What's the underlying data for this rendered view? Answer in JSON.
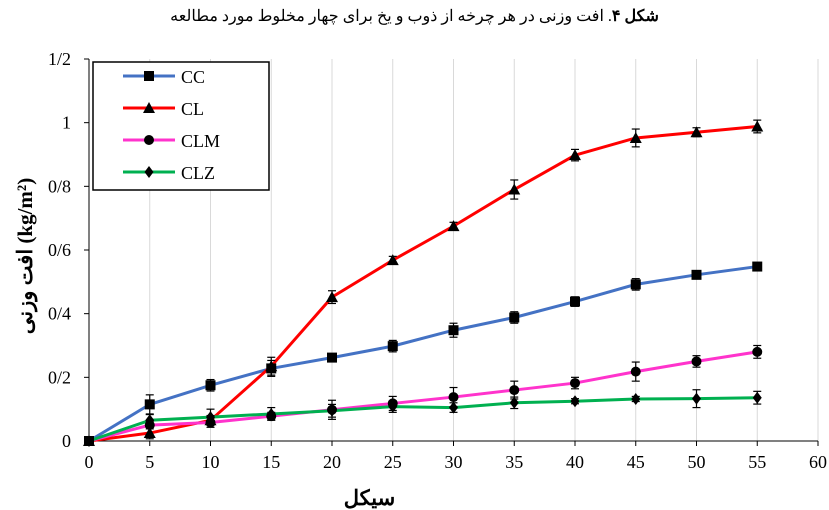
{
  "caption": {
    "label": "شکل ۴",
    "text": ". افت وزنی در هر چرخه از ذوب و یخ برای چهار مخلوط مورد مطالعه"
  },
  "chart_data": {
    "type": "line",
    "title": "",
    "xlabel": "سیکل",
    "ylabel": "افت وزنی (kg/m²)",
    "xlim": [
      0,
      60
    ],
    "ylim": [
      0,
      1.2
    ],
    "x_ticks": [
      0,
      5,
      10,
      15,
      20,
      25,
      30,
      35,
      40,
      45,
      50,
      55,
      60
    ],
    "x_tick_labels": [
      "0",
      "5",
      "10",
      "15",
      "20",
      "25",
      "30",
      "35",
      "40",
      "45",
      "50",
      "55",
      "60"
    ],
    "y_ticks": [
      0,
      0.2,
      0.4,
      0.6,
      0.8,
      1.0,
      1.2
    ],
    "y_tick_labels": [
      "0",
      "0/2",
      "0/4",
      "0/6",
      "0/8",
      "1",
      "1/2"
    ],
    "grid": "vertical",
    "legend_position": "top-left",
    "x": [
      0,
      5,
      10,
      15,
      20,
      25,
      30,
      35,
      40,
      45,
      50,
      55
    ],
    "series": [
      {
        "name": "CC",
        "color": "#4472C4",
        "marker": "square",
        "values": [
          0,
          0.115,
          0.175,
          0.228,
          0.262,
          0.298,
          0.348,
          0.388,
          0.438,
          0.492,
          0.522,
          0.548
        ],
        "errors": [
          0,
          0.03,
          0.018,
          0.025,
          0.012,
          0.018,
          0.022,
          0.018,
          0.015,
          0.018,
          0.01,
          0.01
        ]
      },
      {
        "name": "CL",
        "color": "#FF0000",
        "marker": "triangle",
        "values": [
          0,
          0.025,
          0.065,
          0.235,
          0.452,
          0.568,
          0.675,
          0.79,
          0.898,
          0.952,
          0.97,
          0.988
        ],
        "errors": [
          0,
          0.018,
          0.015,
          0.028,
          0.02,
          0.012,
          0.012,
          0.03,
          0.018,
          0.028,
          0.014,
          0.02
        ]
      },
      {
        "name": "CLM",
        "color": "#FF33CC",
        "marker": "circle",
        "values": [
          0,
          0.05,
          0.058,
          0.078,
          0.098,
          0.118,
          0.138,
          0.16,
          0.182,
          0.218,
          0.25,
          0.28
        ],
        "errors": [
          0,
          0.012,
          0.015,
          0.012,
          0.03,
          0.022,
          0.03,
          0.028,
          0.018,
          0.03,
          0.018,
          0.02
        ]
      },
      {
        "name": "CLZ",
        "color": "#00B050",
        "marker": "diamond",
        "values": [
          0,
          0.065,
          0.075,
          0.085,
          0.095,
          0.108,
          0.105,
          0.12,
          0.125,
          0.132,
          0.133,
          0.136
        ],
        "errors": [
          0,
          0.018,
          0.025,
          0.02,
          0.02,
          0.018,
          0.015,
          0.018,
          0.008,
          0.008,
          0.028,
          0.02
        ]
      }
    ]
  }
}
